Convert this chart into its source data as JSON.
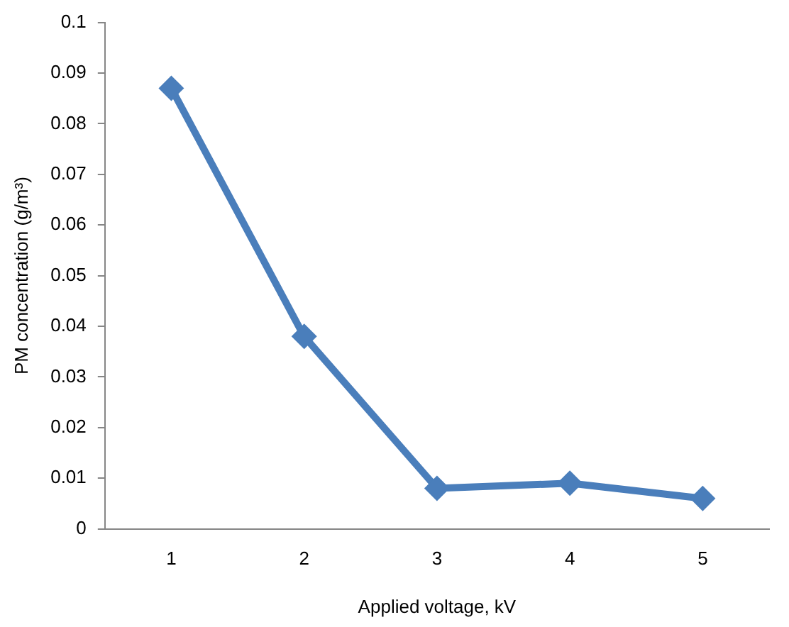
{
  "chart_data": {
    "type": "line",
    "xlabel": "Applied voltage, kV",
    "ylabel": "PM concentration (g/m³)",
    "categories": [
      "1",
      "2",
      "3",
      "4",
      "5"
    ],
    "series": [
      {
        "color": "#4a7ebb",
        "values": [
          0.087,
          0.038,
          0.008,
          0.009,
          0.006
        ]
      }
    ],
    "ylim": [
      0,
      0.1
    ],
    "yticks": [
      0,
      0.01,
      0.02,
      0.03,
      0.04,
      0.05,
      0.06,
      0.07,
      0.08,
      0.09,
      0.1
    ],
    "grid": false,
    "legend": false,
    "marker": "diamond",
    "line_style": "solid"
  }
}
